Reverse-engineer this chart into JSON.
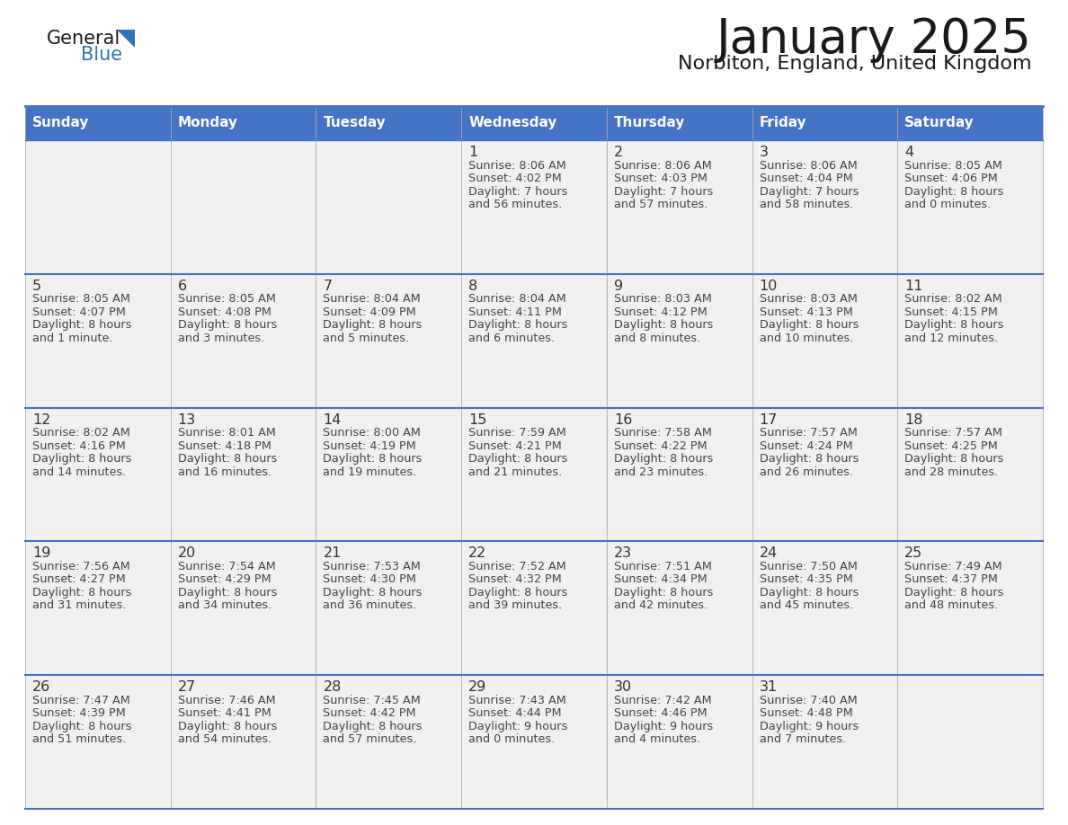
{
  "title": "January 2025",
  "subtitle": "Norbiton, England, United Kingdom",
  "days_of_week": [
    "Sunday",
    "Monday",
    "Tuesday",
    "Wednesday",
    "Thursday",
    "Friday",
    "Saturday"
  ],
  "header_bg": "#4472C4",
  "header_text": "#FFFFFF",
  "cell_bg_light": "#F0F0F0",
  "day_num_color": "#333333",
  "info_color": "#444444",
  "line_color": "#4472C4",
  "logo_general_color": "#1a1a1a",
  "logo_blue_color": "#2E75B6",
  "calendar_data": [
    [
      {
        "day": null,
        "sunrise": null,
        "sunset": null,
        "daylight_line1": null,
        "daylight_line2": null
      },
      {
        "day": null,
        "sunrise": null,
        "sunset": null,
        "daylight_line1": null,
        "daylight_line2": null
      },
      {
        "day": null,
        "sunrise": null,
        "sunset": null,
        "daylight_line1": null,
        "daylight_line2": null
      },
      {
        "day": "1",
        "sunrise": "8:06 AM",
        "sunset": "4:02 PM",
        "daylight_line1": "Daylight: 7 hours",
        "daylight_line2": "and 56 minutes."
      },
      {
        "day": "2",
        "sunrise": "8:06 AM",
        "sunset": "4:03 PM",
        "daylight_line1": "Daylight: 7 hours",
        "daylight_line2": "and 57 minutes."
      },
      {
        "day": "3",
        "sunrise": "8:06 AM",
        "sunset": "4:04 PM",
        "daylight_line1": "Daylight: 7 hours",
        "daylight_line2": "and 58 minutes."
      },
      {
        "day": "4",
        "sunrise": "8:05 AM",
        "sunset": "4:06 PM",
        "daylight_line1": "Daylight: 8 hours",
        "daylight_line2": "and 0 minutes."
      }
    ],
    [
      {
        "day": "5",
        "sunrise": "8:05 AM",
        "sunset": "4:07 PM",
        "daylight_line1": "Daylight: 8 hours",
        "daylight_line2": "and 1 minute."
      },
      {
        "day": "6",
        "sunrise": "8:05 AM",
        "sunset": "4:08 PM",
        "daylight_line1": "Daylight: 8 hours",
        "daylight_line2": "and 3 minutes."
      },
      {
        "day": "7",
        "sunrise": "8:04 AM",
        "sunset": "4:09 PM",
        "daylight_line1": "Daylight: 8 hours",
        "daylight_line2": "and 5 minutes."
      },
      {
        "day": "8",
        "sunrise": "8:04 AM",
        "sunset": "4:11 PM",
        "daylight_line1": "Daylight: 8 hours",
        "daylight_line2": "and 6 minutes."
      },
      {
        "day": "9",
        "sunrise": "8:03 AM",
        "sunset": "4:12 PM",
        "daylight_line1": "Daylight: 8 hours",
        "daylight_line2": "and 8 minutes."
      },
      {
        "day": "10",
        "sunrise": "8:03 AM",
        "sunset": "4:13 PM",
        "daylight_line1": "Daylight: 8 hours",
        "daylight_line2": "and 10 minutes."
      },
      {
        "day": "11",
        "sunrise": "8:02 AM",
        "sunset": "4:15 PM",
        "daylight_line1": "Daylight: 8 hours",
        "daylight_line2": "and 12 minutes."
      }
    ],
    [
      {
        "day": "12",
        "sunrise": "8:02 AM",
        "sunset": "4:16 PM",
        "daylight_line1": "Daylight: 8 hours",
        "daylight_line2": "and 14 minutes."
      },
      {
        "day": "13",
        "sunrise": "8:01 AM",
        "sunset": "4:18 PM",
        "daylight_line1": "Daylight: 8 hours",
        "daylight_line2": "and 16 minutes."
      },
      {
        "day": "14",
        "sunrise": "8:00 AM",
        "sunset": "4:19 PM",
        "daylight_line1": "Daylight: 8 hours",
        "daylight_line2": "and 19 minutes."
      },
      {
        "day": "15",
        "sunrise": "7:59 AM",
        "sunset": "4:21 PM",
        "daylight_line1": "Daylight: 8 hours",
        "daylight_line2": "and 21 minutes."
      },
      {
        "day": "16",
        "sunrise": "7:58 AM",
        "sunset": "4:22 PM",
        "daylight_line1": "Daylight: 8 hours",
        "daylight_line2": "and 23 minutes."
      },
      {
        "day": "17",
        "sunrise": "7:57 AM",
        "sunset": "4:24 PM",
        "daylight_line1": "Daylight: 8 hours",
        "daylight_line2": "and 26 minutes."
      },
      {
        "day": "18",
        "sunrise": "7:57 AM",
        "sunset": "4:25 PM",
        "daylight_line1": "Daylight: 8 hours",
        "daylight_line2": "and 28 minutes."
      }
    ],
    [
      {
        "day": "19",
        "sunrise": "7:56 AM",
        "sunset": "4:27 PM",
        "daylight_line1": "Daylight: 8 hours",
        "daylight_line2": "and 31 minutes."
      },
      {
        "day": "20",
        "sunrise": "7:54 AM",
        "sunset": "4:29 PM",
        "daylight_line1": "Daylight: 8 hours",
        "daylight_line2": "and 34 minutes."
      },
      {
        "day": "21",
        "sunrise": "7:53 AM",
        "sunset": "4:30 PM",
        "daylight_line1": "Daylight: 8 hours",
        "daylight_line2": "and 36 minutes."
      },
      {
        "day": "22",
        "sunrise": "7:52 AM",
        "sunset": "4:32 PM",
        "daylight_line1": "Daylight: 8 hours",
        "daylight_line2": "and 39 minutes."
      },
      {
        "day": "23",
        "sunrise": "7:51 AM",
        "sunset": "4:34 PM",
        "daylight_line1": "Daylight: 8 hours",
        "daylight_line2": "and 42 minutes."
      },
      {
        "day": "24",
        "sunrise": "7:50 AM",
        "sunset": "4:35 PM",
        "daylight_line1": "Daylight: 8 hours",
        "daylight_line2": "and 45 minutes."
      },
      {
        "day": "25",
        "sunrise": "7:49 AM",
        "sunset": "4:37 PM",
        "daylight_line1": "Daylight: 8 hours",
        "daylight_line2": "and 48 minutes."
      }
    ],
    [
      {
        "day": "26",
        "sunrise": "7:47 AM",
        "sunset": "4:39 PM",
        "daylight_line1": "Daylight: 8 hours",
        "daylight_line2": "and 51 minutes."
      },
      {
        "day": "27",
        "sunrise": "7:46 AM",
        "sunset": "4:41 PM",
        "daylight_line1": "Daylight: 8 hours",
        "daylight_line2": "and 54 minutes."
      },
      {
        "day": "28",
        "sunrise": "7:45 AM",
        "sunset": "4:42 PM",
        "daylight_line1": "Daylight: 8 hours",
        "daylight_line2": "and 57 minutes."
      },
      {
        "day": "29",
        "sunrise": "7:43 AM",
        "sunset": "4:44 PM",
        "daylight_line1": "Daylight: 9 hours",
        "daylight_line2": "and 0 minutes."
      },
      {
        "day": "30",
        "sunrise": "7:42 AM",
        "sunset": "4:46 PM",
        "daylight_line1": "Daylight: 9 hours",
        "daylight_line2": "and 4 minutes."
      },
      {
        "day": "31",
        "sunrise": "7:40 AM",
        "sunset": "4:48 PM",
        "daylight_line1": "Daylight: 9 hours",
        "daylight_line2": "and 7 minutes."
      },
      {
        "day": null,
        "sunrise": null,
        "sunset": null,
        "daylight_line1": null,
        "daylight_line2": null
      }
    ]
  ]
}
